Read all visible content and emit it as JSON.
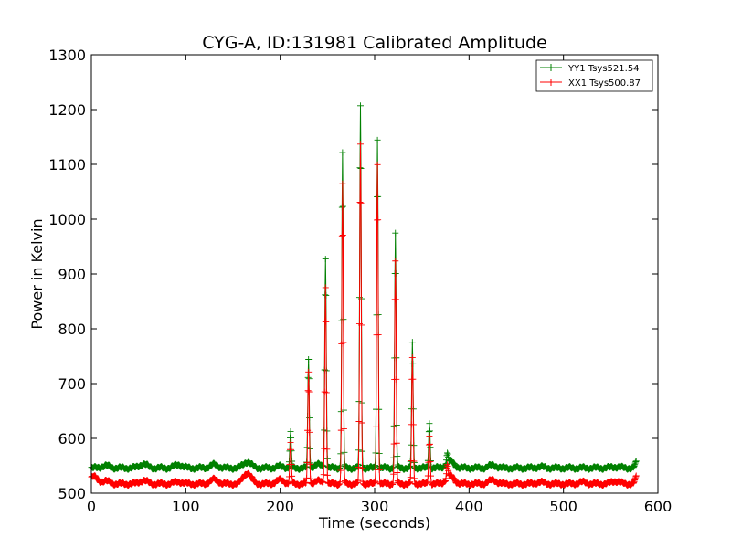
{
  "chart_data": {
    "type": "line",
    "title": "CYG-A, ID:131981 Calibrated Amplitude",
    "xlabel": "Time (seconds)",
    "ylabel": "Power in Kelvin",
    "xlim": [
      0,
      600
    ],
    "ylim": [
      500,
      1300
    ],
    "xticks": [
      0,
      100,
      200,
      300,
      400,
      500,
      600
    ],
    "yticks": [
      500,
      600,
      700,
      800,
      900,
      1000,
      1100,
      1200,
      1300
    ],
    "grid": false,
    "legend_position": "top-right",
    "x_end": 577,
    "marker": "+",
    "series": [
      {
        "name": "YY1 Tsys521.54",
        "color": "#008000",
        "baseline": 546,
        "end_value": 556,
        "bumps": [
          [
            15,
            550
          ],
          [
            55,
            553
          ],
          [
            92,
            552
          ],
          [
            130,
            552
          ],
          [
            165,
            557
          ],
          [
            200,
            549
          ],
          [
            240,
            552
          ],
          [
            380,
            558
          ],
          [
            425,
            551
          ],
          [
            475,
            548
          ],
          [
            520,
            546
          ],
          [
            555,
            548
          ]
        ],
        "peaks": [
          [
            211,
            610
          ],
          [
            230,
            743
          ],
          [
            248,
            927
          ],
          [
            266,
            1120
          ],
          [
            285,
            1205
          ],
          [
            303,
            1145
          ],
          [
            322,
            973
          ],
          [
            340,
            773
          ],
          [
            358,
            628
          ],
          [
            377,
            563
          ]
        ]
      },
      {
        "name": "XX1 Tsys500.87",
        "color": "#ff0000",
        "baseline": 517,
        "end_value": 529,
        "bumps": [
          [
            2,
            530
          ],
          [
            15,
            522
          ],
          [
            55,
            523
          ],
          [
            92,
            521
          ],
          [
            130,
            525
          ],
          [
            165,
            537
          ],
          [
            200,
            524
          ],
          [
            240,
            522
          ],
          [
            380,
            531
          ],
          [
            425,
            524
          ],
          [
            475,
            520
          ],
          [
            520,
            520
          ],
          [
            555,
            522
          ]
        ],
        "peaks": [
          [
            211,
            590
          ],
          [
            230,
            720
          ],
          [
            248,
            875
          ],
          [
            266,
            1063
          ],
          [
            285,
            1135
          ],
          [
            303,
            1100
          ],
          [
            322,
            922
          ],
          [
            340,
            745
          ],
          [
            358,
            605
          ],
          [
            377,
            540
          ]
        ]
      }
    ]
  }
}
